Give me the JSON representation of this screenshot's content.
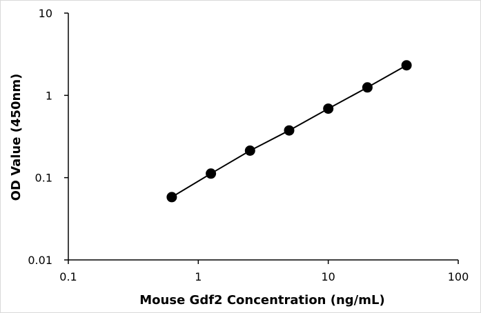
{
  "chart_data": {
    "type": "scatter",
    "title": "",
    "xlabel": "Mouse Gdf2 Concentration (ng/mL)",
    "ylabel": "OD Value (450nm)",
    "x_scale": "log",
    "y_scale": "log",
    "xlim": [
      0.1,
      100
    ],
    "ylim": [
      0.01,
      10
    ],
    "x_ticks": [
      "0.1",
      "1",
      "10",
      "100"
    ],
    "y_ticks": [
      "0.01",
      "0.1",
      "1",
      "10"
    ],
    "grid": false,
    "legend": "none",
    "series": [
      {
        "x": [
          0.625,
          1.25,
          2.5,
          5,
          10,
          20,
          40
        ],
        "y": [
          0.058,
          0.112,
          0.213,
          0.375,
          0.69,
          1.25,
          2.32
        ],
        "color": "#000000",
        "line": "connected",
        "marker": "filled-circle"
      }
    ]
  }
}
